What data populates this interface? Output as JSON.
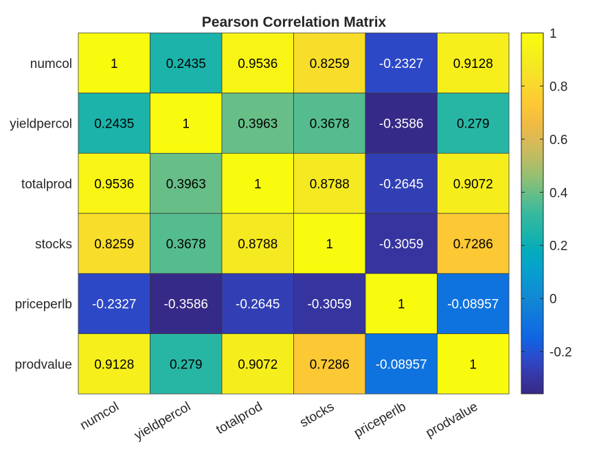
{
  "chart_data": {
    "type": "heatmap",
    "title": "Pearson Correlation Matrix",
    "row_labels": [
      "numcol",
      "yieldpercol",
      "totalprod",
      "stocks",
      "priceperlb",
      "prodvalue"
    ],
    "col_labels": [
      "numcol",
      "yieldpercol",
      "totalprod",
      "stocks",
      "priceperlb",
      "prodvalue"
    ],
    "values": [
      [
        1,
        0.2435,
        0.9536,
        0.8259,
        -0.2327,
        0.9128
      ],
      [
        0.2435,
        1,
        0.3963,
        0.3678,
        -0.3586,
        0.279
      ],
      [
        0.9536,
        0.3963,
        1,
        0.8788,
        -0.2645,
        0.9072
      ],
      [
        0.8259,
        0.3678,
        0.8788,
        1,
        -0.3059,
        0.7286
      ],
      [
        -0.2327,
        -0.3586,
        -0.2645,
        -0.3059,
        1,
        -0.08957
      ],
      [
        0.9128,
        0.279,
        0.9072,
        0.7286,
        -0.08957,
        1
      ]
    ],
    "value_labels": [
      [
        "1",
        "0.2435",
        "0.9536",
        "0.8259",
        "-0.2327",
        "0.9128"
      ],
      [
        "0.2435",
        "1",
        "0.3963",
        "0.3678",
        "-0.3586",
        "0.279"
      ],
      [
        "0.9536",
        "0.3963",
        "1",
        "0.8788",
        "-0.2645",
        "0.9072"
      ],
      [
        "0.8259",
        "0.3678",
        "0.8788",
        "1",
        "-0.3059",
        "0.7286"
      ],
      [
        "-0.2327",
        "-0.3586",
        "-0.2645",
        "-0.3059",
        "1",
        "-0.08957"
      ],
      [
        "0.9128",
        "0.279",
        "0.9072",
        "0.7286",
        "-0.08957",
        "1"
      ]
    ],
    "colormap": "parula",
    "color_limits": [
      -0.3586,
      1
    ],
    "colorbar": {
      "ticks": [
        -0.2,
        0,
        0.2,
        0.4,
        0.6,
        0.8,
        1
      ],
      "tick_labels": [
        "-0.2",
        "0",
        "0.2",
        "0.4",
        "0.6",
        "0.8",
        "1"
      ],
      "placement": "right"
    },
    "grid": true
  }
}
